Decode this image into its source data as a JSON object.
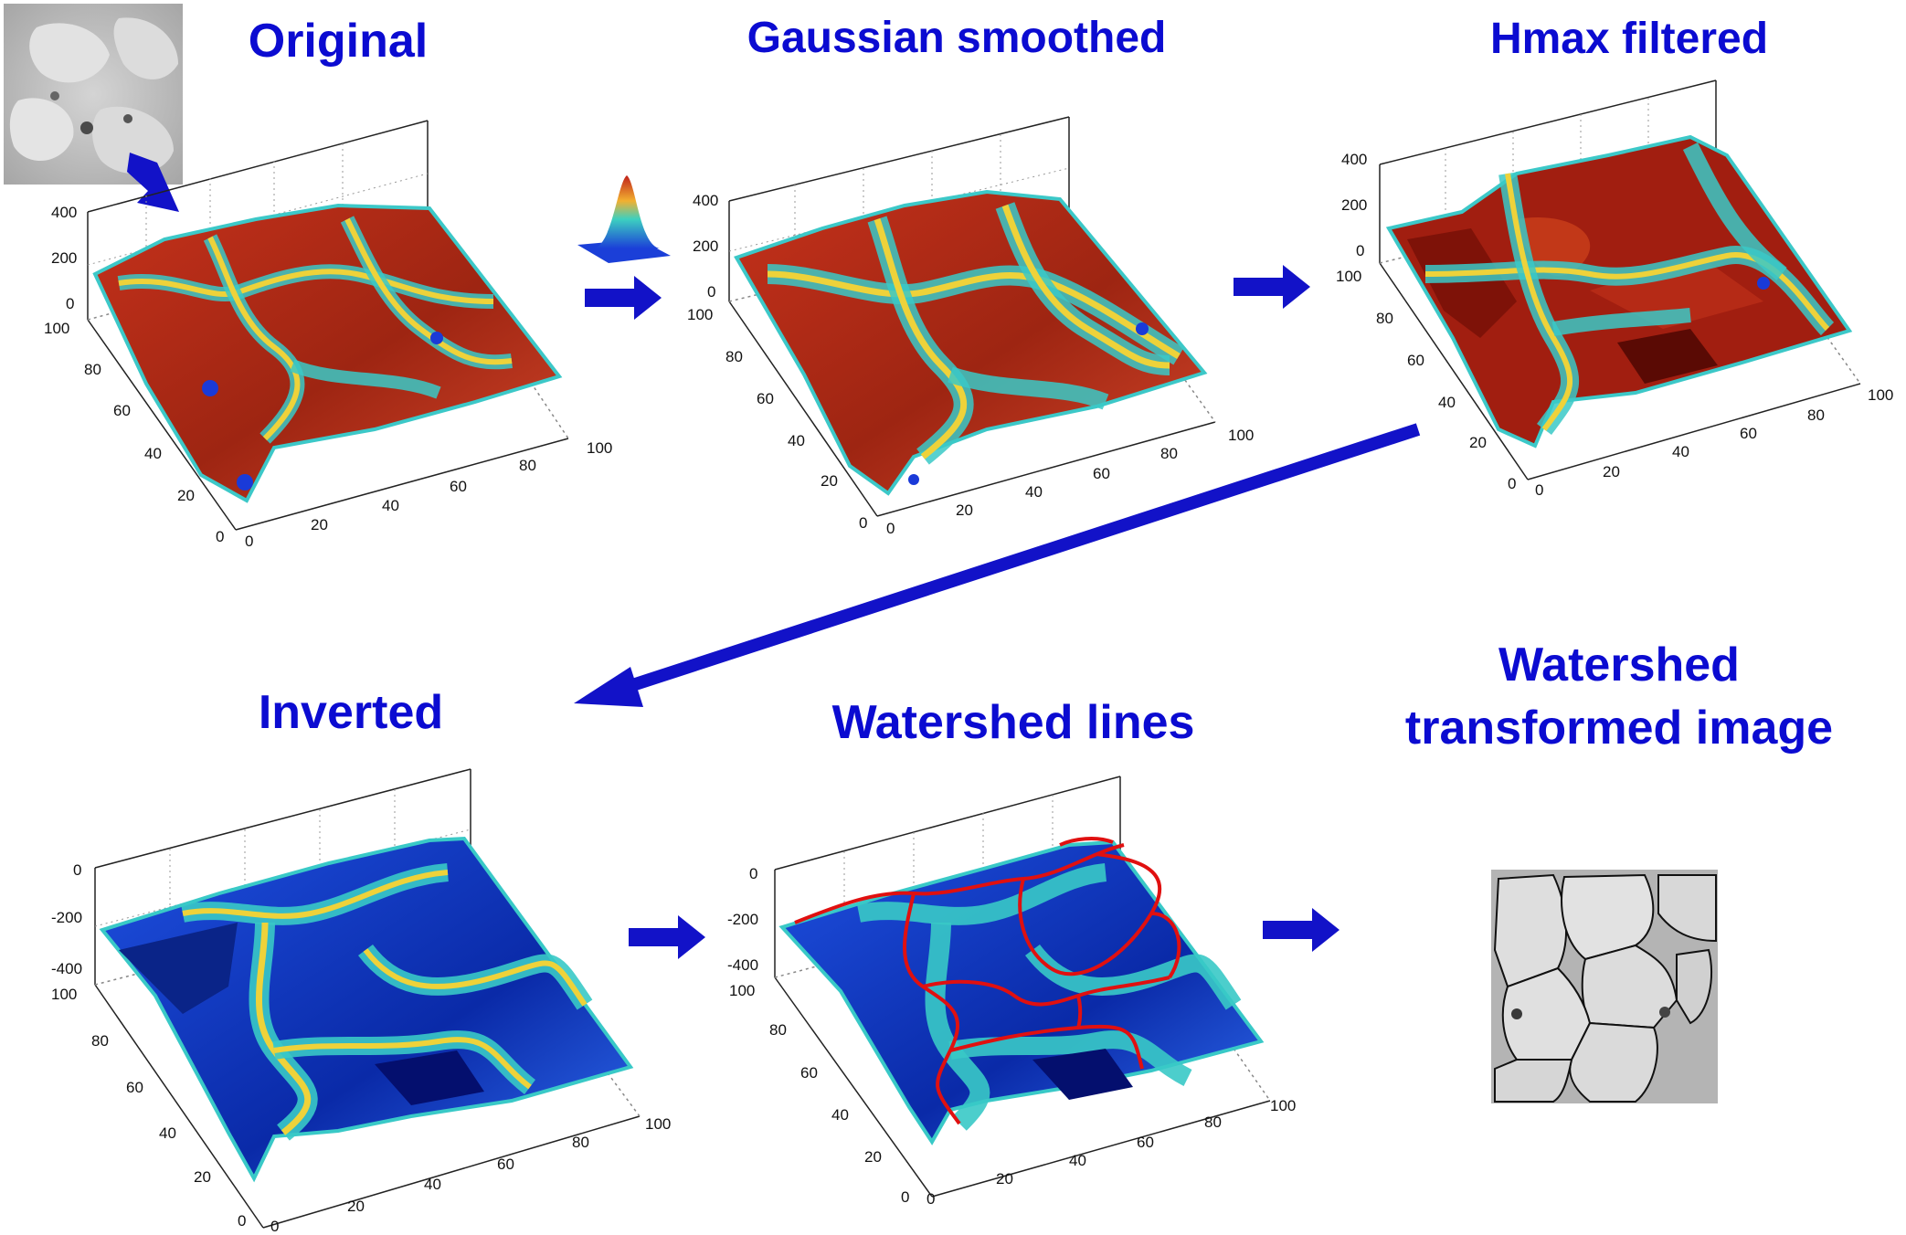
{
  "colors": {
    "title": "#0b0bd1",
    "arrow": "#1212c8",
    "watershed_line": "#e01010",
    "surface_high": "#b42a16",
    "surface_mid": "#f0d43a",
    "surface_low": "#18c2c8",
    "surface_deep": "#0a2ab8"
  },
  "titles": {
    "original": "Original",
    "gaussian": "Gaussian smoothed",
    "hmax": "Hmax filtered",
    "inverted": "Inverted",
    "watershed_lines": "Watershed lines",
    "watershed_transformed_1": "Watershed",
    "watershed_transformed_2": "transformed image"
  },
  "plots": {
    "original": {
      "z_ticks": [
        "400",
        "200",
        "0"
      ],
      "y_ticks": [
        "100",
        "80",
        "60",
        "40",
        "20",
        "0"
      ],
      "x_ticks": [
        "0",
        "20",
        "40",
        "60",
        "80",
        "100"
      ]
    },
    "gaussian": {
      "z_ticks": [
        "400",
        "200",
        "0"
      ],
      "y_ticks": [
        "100",
        "80",
        "60",
        "40",
        "20",
        "0"
      ],
      "x_ticks": [
        "0",
        "20",
        "40",
        "60",
        "80",
        "100"
      ]
    },
    "hmax": {
      "z_ticks": [
        "400",
        "200",
        "0"
      ],
      "y_ticks": [
        "100",
        "80",
        "60",
        "40",
        "20",
        "0"
      ],
      "x_ticks": [
        "0",
        "20",
        "40",
        "60",
        "80",
        "100"
      ]
    },
    "inverted": {
      "z_ticks": [
        "0",
        "-200",
        "-400"
      ],
      "y_ticks": [
        "100",
        "80",
        "60",
        "40",
        "20",
        "0"
      ],
      "x_ticks": [
        "0",
        "20",
        "40",
        "60",
        "80",
        "100"
      ]
    },
    "watershed_lines": {
      "z_ticks": [
        "0",
        "-200",
        "-400"
      ],
      "y_ticks": [
        "100",
        "80",
        "60",
        "40",
        "20",
        "0"
      ],
      "x_ticks": [
        "0",
        "20",
        "40",
        "60",
        "80",
        "100"
      ]
    }
  },
  "icons": {
    "gaussian_kernel": "gaussian-kernel-icon",
    "original_thumbnail": "grayscale-micrograph-thumbnail",
    "result_thumbnail": "segmented-micrograph-thumbnail"
  }
}
